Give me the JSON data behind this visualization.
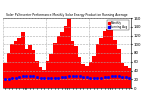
{
  "title": "Solar PV/Inverter Performance Monthly Solar Energy Production Running Average",
  "bar_color": "#ff0000",
  "avg_color": "#0000ff",
  "background": "#ffffff",
  "grid_color": "#aaaaaa",
  "values": [
    58,
    80,
    100,
    108,
    115,
    128,
    90,
    98,
    88,
    62,
    48,
    42,
    62,
    78,
    102,
    118,
    128,
    142,
    158,
    108,
    96,
    72,
    56,
    50,
    60,
    74,
    100,
    114,
    130,
    134,
    148,
    110,
    90,
    58,
    50,
    46
  ],
  "running_avg": [
    20,
    20,
    22,
    24,
    26,
    28,
    28,
    28,
    27,
    26,
    24,
    22,
    22,
    22,
    23,
    24,
    25,
    26,
    28,
    28,
    28,
    27,
    26,
    25,
    24,
    24,
    24,
    24,
    25,
    26,
    27,
    27,
    27,
    26,
    25,
    24
  ],
  "ylim_max": 160,
  "yticks": [
    0,
    20,
    40,
    60,
    80,
    100,
    120,
    140,
    160
  ],
  "ytick_labels": [
    "0",
    "20",
    "40",
    "60",
    "80",
    "100",
    "120",
    "140",
    "160"
  ],
  "legend_bar": "Monthly",
  "legend_avg": "Running Avg",
  "n_years": 3,
  "months_per_year": 12
}
